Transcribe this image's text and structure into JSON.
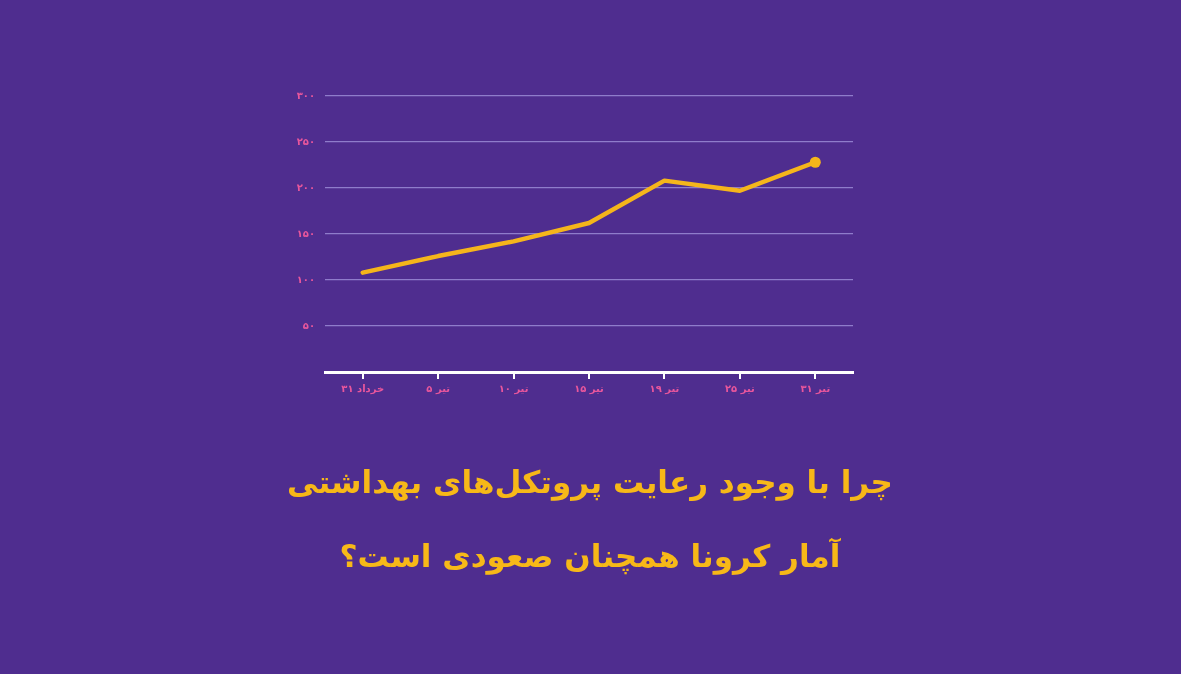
{
  "chart_data": {
    "type": "line",
    "title": "چرا با وجود رعایت پروتکل‌های بهداشتی\nآمار کرونا همچنان صعودی است؟",
    "categories": [
      "۳۱ خرداد",
      "۵ تیر",
      "۱۰ تیر",
      "۱۵ تیر",
      "۱۹ تیر",
      "۲۵ تیر",
      "۳۱ تیر"
    ],
    "series": [
      {
        "color": "#f5b51b",
        "values": [
          108,
          126,
          142,
          162,
          208,
          197,
          228
        ]
      }
    ],
    "ylim": [
      0,
      300
    ],
    "yticks": [
      {
        "value": 50,
        "label": "۵۰"
      },
      {
        "value": 100,
        "label": "۱۰۰"
      },
      {
        "value": 150,
        "label": "۱۵۰"
      },
      {
        "value": 200,
        "label": "۲۰۰"
      },
      {
        "value": 250,
        "label": "۲۵۰"
      },
      {
        "value": 300,
        "label": "۳۰۰"
      }
    ],
    "grid": "y",
    "line_style": "solid"
  }
}
